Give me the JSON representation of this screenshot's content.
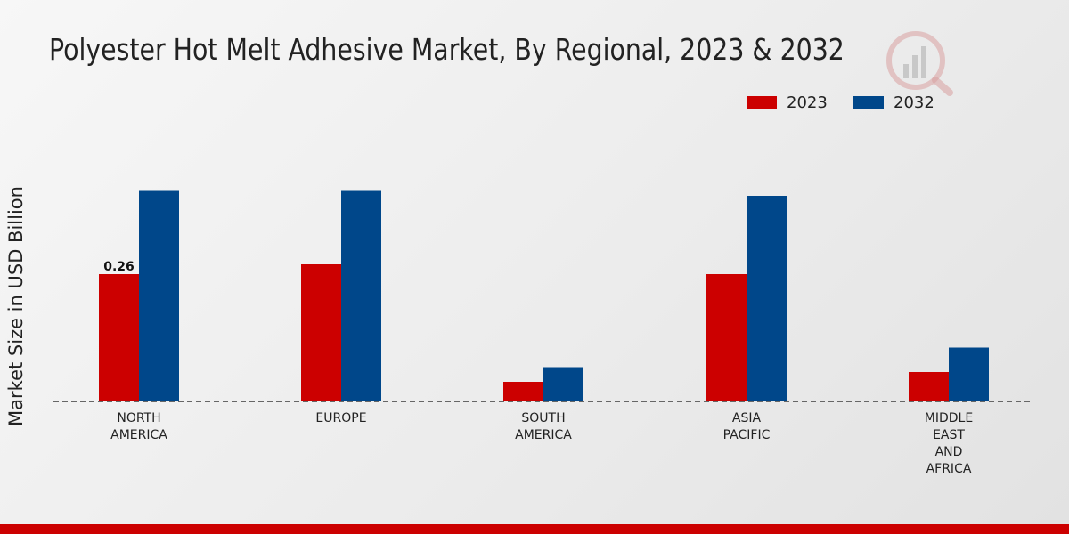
{
  "chart_data": {
    "type": "bar",
    "title": "Polyester Hot Melt Adhesive Market, By Regional, 2023 & 2032",
    "xlabel": "",
    "ylabel": "Market Size in USD Billion",
    "categories": [
      [
        "NORTH",
        "AMERICA"
      ],
      [
        "EUROPE"
      ],
      [
        "SOUTH",
        "AMERICA"
      ],
      [
        "ASIA",
        "PACIFIC"
      ],
      [
        "MIDDLE",
        "EAST",
        "AND",
        "AFRICA"
      ]
    ],
    "series": [
      {
        "name": "2023",
        "color": "#cc0000",
        "values": [
          0.26,
          0.28,
          0.04,
          0.26,
          0.06
        ]
      },
      {
        "name": "2032",
        "color": "#00478a",
        "values": [
          0.43,
          0.43,
          0.07,
          0.42,
          0.11
        ]
      }
    ],
    "data_labels": [
      {
        "series": 0,
        "index": 0,
        "text": "0.26"
      }
    ],
    "ylim": [
      0,
      0.5
    ],
    "grid": false,
    "legend_position": "top-right"
  }
}
